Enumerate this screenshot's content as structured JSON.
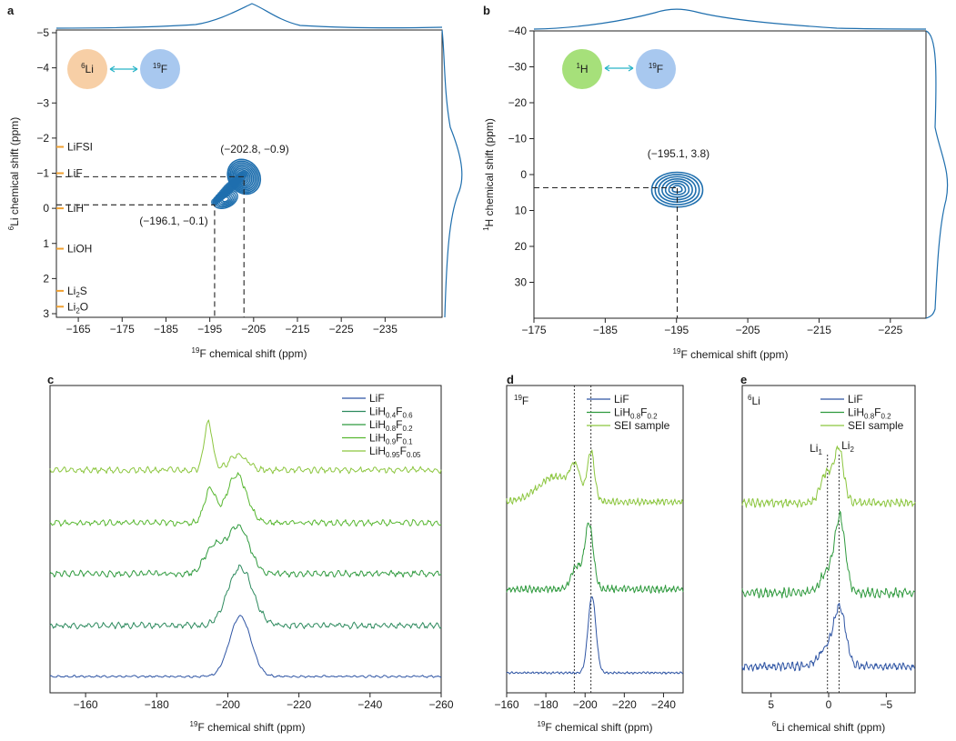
{
  "colors": {
    "lif": "#2f55a4",
    "lih04": "#2d8a5e",
    "lih08": "#2f9a3e",
    "lih09": "#58b731",
    "lih095": "#8cc63f",
    "sei": "#8cc63f",
    "contour": "#1f6fae",
    "li_ref": "#f0a030",
    "circle_li": "#f7cfa6",
    "circle_f": "#a8c8ef",
    "circle_h": "#a6e07a",
    "arrow": "#28b4c8"
  },
  "chart_data": [
    {
      "panel": "a",
      "type": "heatmap",
      "xlabel_sup": "19",
      "xlabel": "F chemical shift (ppm)",
      "ylabel_sup": "6",
      "ylabel": "Li chemical shift (ppm)",
      "xlim": [
        -160,
        -248
      ],
      "ylim": [
        -5,
        3
      ],
      "xticks": [
        "−165",
        "−175",
        "−185",
        "−195",
        "−205",
        "−215",
        "−225",
        "−235"
      ],
      "yticks": [
        "−5",
        "−4",
        "−3",
        "−2",
        "−1",
        "0",
        "1",
        "2",
        "3"
      ],
      "nuclei": [
        {
          "sup": "6",
          "el": "Li"
        },
        {
          "sup": "19",
          "el": "F"
        }
      ],
      "reference_lines": [
        {
          "label": "LiFSI",
          "y": -1.75
        },
        {
          "label": "LiF",
          "y": -1.0
        },
        {
          "label": "LiH",
          "y": 0.0
        },
        {
          "label": "LiOH",
          "y": 1.15
        },
        {
          "label": "Li",
          "sub": "2",
          "tail": "S",
          "y": 2.35
        },
        {
          "label": "Li",
          "sub": "2",
          "tail": "O",
          "y": 2.8
        }
      ],
      "peaks": [
        {
          "label": "(−202.8, −0.9)",
          "x": -202.8,
          "y": -0.9
        },
        {
          "label": "(−196.1, −0.1)",
          "x": -196.1,
          "y": -0.1
        }
      ]
    },
    {
      "panel": "b",
      "type": "heatmap",
      "xlabel_sup": "19",
      "xlabel": "F chemical shift (ppm)",
      "ylabel_sup": "1",
      "ylabel": "H chemical shift (ppm)",
      "xlim": [
        -175,
        -230
      ],
      "ylim": [
        -40,
        40
      ],
      "xticks": [
        "−175",
        "−185",
        "−195",
        "−205",
        "−215",
        "−225"
      ],
      "yticks": [
        "−40",
        "−30",
        "−20",
        "−10",
        "0",
        "10",
        "20",
        "30"
      ],
      "nuclei": [
        {
          "sup": "1",
          "el": "H"
        },
        {
          "sup": "19",
          "el": "F"
        }
      ],
      "peaks": [
        {
          "label": "(−195.1, 3.8)",
          "x": -195.1,
          "y": 3.8
        }
      ]
    },
    {
      "panel": "c",
      "type": "line",
      "xlabel_sup": "19",
      "xlabel": "F chemical shift (ppm)",
      "xlim": [
        -150,
        -260
      ],
      "xticks": [
        "−160",
        "−180",
        "−200",
        "−220",
        "−240",
        "−260"
      ],
      "series": [
        {
          "name": "LiF",
          "parts": [
            [
              "LiF",
              ""
            ]
          ],
          "peaks": [
            [
              -203.5,
              1.0,
              3.0
            ]
          ]
        },
        {
          "name": "LiH0.4F0.6",
          "parts": [
            [
              "LiH",
              ""
            ],
            [
              "0.4",
              "sub"
            ],
            [
              "F",
              ""
            ],
            [
              "0.6",
              "sub"
            ]
          ],
          "peaks": [
            [
              -203.5,
              1.0,
              3.5
            ]
          ]
        },
        {
          "name": "LiH0.8F0.2",
          "parts": [
            [
              "LiH",
              ""
            ],
            [
              "0.8",
              "sub"
            ],
            [
              "F",
              ""
            ],
            [
              "0.2",
              "sub"
            ]
          ],
          "peaks": [
            [
              -203.0,
              0.8,
              3.0
            ],
            [
              -196.0,
              0.45,
              2.5
            ]
          ]
        },
        {
          "name": "LiH0.9F0.1",
          "parts": [
            [
              "LiH",
              ""
            ],
            [
              "0.9",
              "sub"
            ],
            [
              "F",
              ""
            ],
            [
              "0.1",
              "sub"
            ]
          ],
          "peaks": [
            [
              -202.5,
              0.8,
              2.8
            ],
            [
              -195.0,
              0.55,
              1.6
            ]
          ]
        },
        {
          "name": "LiH0.95F0.05",
          "parts": [
            [
              "LiH",
              ""
            ],
            [
              "0.95",
              "sub"
            ],
            [
              "F",
              ""
            ],
            [
              "0.05",
              "sub"
            ]
          ],
          "peaks": [
            [
              -194.5,
              0.8,
              1.2
            ],
            [
              -203.0,
              0.25,
              2.5
            ]
          ]
        }
      ]
    },
    {
      "panel": "d",
      "type": "line",
      "nucleus_sup": "19",
      "nucleus": "F",
      "xlabel_sup": "19",
      "xlabel": "F chemical shift (ppm)",
      "xlim": [
        -160,
        -250
      ],
      "xticks": [
        "−160",
        "−180",
        "−200",
        "−220",
        "−240"
      ],
      "vlines": [
        -194.5,
        -203.0
      ],
      "series": [
        {
          "name": "LiF",
          "parts": [
            [
              "LiF",
              ""
            ]
          ],
          "peaks": [
            [
              -203.5,
              1.0,
              2.0
            ]
          ]
        },
        {
          "name": "LiH0.8F0.2",
          "parts": [
            [
              "LiH",
              ""
            ],
            [
              "0.8",
              "sub"
            ],
            [
              "F",
              ""
            ],
            [
              "0.2",
              "sub"
            ]
          ],
          "peaks": [
            [
              -202.0,
              0.85,
              2.2
            ],
            [
              -195.5,
              0.3,
              2.5
            ]
          ]
        },
        {
          "name": "SEI sample",
          "parts": [
            [
              "SEI sample",
              ""
            ]
          ],
          "peaks": [
            [
              -203.0,
              0.65,
              1.8
            ],
            [
              -195.0,
              0.35,
              2.5
            ],
            [
              -185.0,
              0.35,
              9.0
            ]
          ]
        }
      ]
    },
    {
      "panel": "e",
      "type": "line",
      "nucleus_sup": "6",
      "nucleus": "Li",
      "xlabel_sup": "6",
      "xlabel": "Li chemical shift (ppm)",
      "xlim": [
        7.5,
        -7.5
      ],
      "xticks": [
        "5",
        "0",
        "−5"
      ],
      "vlines": [
        0.1,
        -0.9
      ],
      "peak_labels": [
        {
          "el": "Li",
          "sub": "1",
          "x": 0.1
        },
        {
          "el": "Li",
          "sub": "2",
          "x": -0.9
        }
      ],
      "series": [
        {
          "name": "LiF",
          "parts": [
            [
              "LiF",
              ""
            ]
          ],
          "peaks": [
            [
              -1.0,
              0.8,
              0.5
            ],
            [
              0.0,
              0.3,
              0.8
            ]
          ]
        },
        {
          "name": "LiH0.8F0.2",
          "parts": [
            [
              "LiH",
              ""
            ],
            [
              "0.8",
              "sub"
            ],
            [
              "F",
              ""
            ],
            [
              "0.2",
              "sub"
            ]
          ],
          "peaks": [
            [
              -1.0,
              1.0,
              0.45
            ],
            [
              0.1,
              0.3,
              0.6
            ]
          ]
        },
        {
          "name": "SEI sample",
          "parts": [
            [
              "SEI sample",
              ""
            ]
          ],
          "peaks": [
            [
              -0.9,
              0.8,
              0.4
            ],
            [
              0.2,
              0.45,
              0.5
            ]
          ]
        }
      ]
    }
  ]
}
